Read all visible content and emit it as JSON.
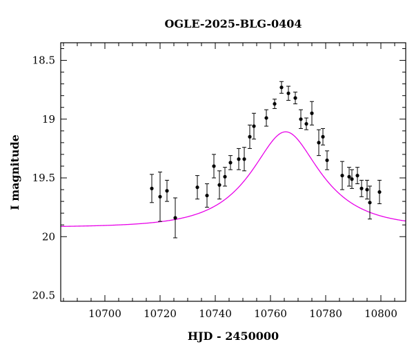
{
  "chart_data": {
    "type": "scatter",
    "title": "OGLE-2025-BLG-0404",
    "xlabel": "HJD - 2450000",
    "ylabel": "I magnitude",
    "xlim": [
      10684,
      10809
    ],
    "ylim": [
      20.55,
      18.35
    ],
    "y_inverted": true,
    "grid": false,
    "x_ticks": [
      10700,
      10720,
      10740,
      10760,
      10780,
      10800
    ],
    "x_tick_labels": [
      "10700",
      "10720",
      "10740",
      "10760",
      "10780",
      "10800"
    ],
    "y_ticks": [
      18.5,
      19,
      19.5,
      20,
      20.5
    ],
    "y_tick_labels": [
      "18.5",
      "19",
      "19.5",
      "20",
      "20.5"
    ],
    "series": [
      {
        "kind": "points_with_errorbars",
        "color": "#000000",
        "points": [
          {
            "x": 10717.0,
            "y": 19.59,
            "err": 0.12
          },
          {
            "x": 10720.0,
            "y": 19.66,
            "err": 0.21
          },
          {
            "x": 10722.5,
            "y": 19.61,
            "err": 0.09
          },
          {
            "x": 10725.5,
            "y": 19.84,
            "err": 0.17
          },
          {
            "x": 10733.5,
            "y": 19.58,
            "err": 0.1
          },
          {
            "x": 10737.0,
            "y": 19.65,
            "err": 0.1
          },
          {
            "x": 10739.5,
            "y": 19.4,
            "err": 0.1
          },
          {
            "x": 10741.5,
            "y": 19.56,
            "err": 0.12
          },
          {
            "x": 10743.5,
            "y": 19.49,
            "err": 0.08
          },
          {
            "x": 10745.5,
            "y": 19.37,
            "err": 0.06
          },
          {
            "x": 10748.5,
            "y": 19.34,
            "err": 0.09
          },
          {
            "x": 10750.5,
            "y": 19.34,
            "err": 0.1
          },
          {
            "x": 10752.5,
            "y": 19.15,
            "err": 0.1
          },
          {
            "x": 10754.0,
            "y": 19.06,
            "err": 0.11
          },
          {
            "x": 10758.5,
            "y": 18.99,
            "err": 0.07
          },
          {
            "x": 10761.5,
            "y": 18.87,
            "err": 0.04
          },
          {
            "x": 10764.0,
            "y": 18.73,
            "err": 0.05
          },
          {
            "x": 10766.5,
            "y": 18.78,
            "err": 0.06
          },
          {
            "x": 10769.0,
            "y": 18.82,
            "err": 0.05
          },
          {
            "x": 10771.0,
            "y": 19.0,
            "err": 0.08
          },
          {
            "x": 10773.0,
            "y": 19.04,
            "err": 0.05
          },
          {
            "x": 10775.0,
            "y": 18.95,
            "err": 0.1
          },
          {
            "x": 10777.5,
            "y": 19.2,
            "err": 0.11
          },
          {
            "x": 10779.0,
            "y": 19.15,
            "err": 0.07
          },
          {
            "x": 10780.5,
            "y": 19.35,
            "err": 0.08
          },
          {
            "x": 10786.0,
            "y": 19.48,
            "err": 0.12
          },
          {
            "x": 10788.5,
            "y": 19.49,
            "err": 0.08
          },
          {
            "x": 10789.5,
            "y": 19.51,
            "err": 0.08
          },
          {
            "x": 10791.5,
            "y": 19.48,
            "err": 0.07
          },
          {
            "x": 10793.0,
            "y": 19.59,
            "err": 0.07
          },
          {
            "x": 10795.0,
            "y": 19.6,
            "err": 0.08
          },
          {
            "x": 10796.0,
            "y": 19.71,
            "err": 0.14
          },
          {
            "x": 10799.5,
            "y": 19.62,
            "err": 0.1
          }
        ]
      },
      {
        "kind": "model_curve",
        "color": "#e800e8",
        "model": {
          "t0": 10765.5,
          "tE": 21,
          "u0": 0.52,
          "baseline_mag": 19.92
        },
        "x_range": [
          10684,
          10809
        ]
      }
    ]
  }
}
